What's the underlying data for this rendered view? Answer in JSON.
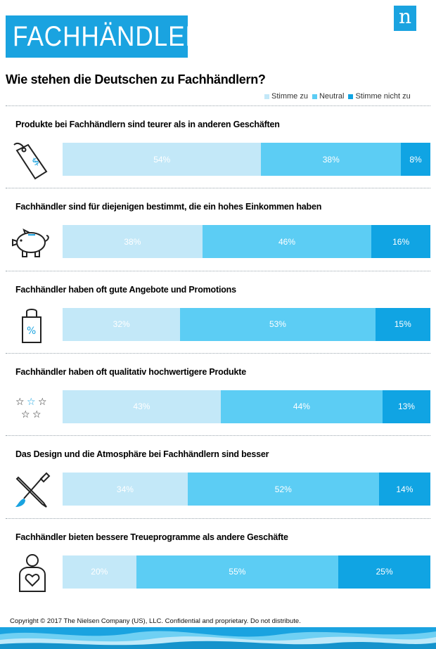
{
  "header": {
    "banner_title": "FACHHÄNDLER",
    "logo_letter": "n"
  },
  "subtitle": "Wie stehen die Deutschen zu Fachhändlern?",
  "colors": {
    "agree": "#c3e8f8",
    "neutral": "#5ccdf4",
    "disagree": "#10a4e3",
    "brand": "#1aa3e0"
  },
  "chart_data": {
    "type": "bar",
    "stacked": true,
    "orientation": "horizontal",
    "title": "Wie stehen die Deutschen zu Fachhändlern?",
    "legend_position": "top-right",
    "series_names": [
      "Stimme zu",
      "Neutral",
      "Stimme nicht zu"
    ],
    "categories": [
      "Produkte bei Fachhändlern sind teurer als in anderen Geschäften",
      "Fachhändler sind für diejenigen bestimmt, die ein hohes Einkommen haben",
      "Fachhändler haben oft gute Angebote und Promotions",
      "Fachhändler haben oft qualitativ hochwertigere Produkte",
      "Das Design und die Atmosphäre bei Fachhändlern sind besser",
      "Fachhändler bieten bessere Treueprogramme als andere Geschäfte"
    ],
    "series": [
      {
        "name": "Stimme zu",
        "values": [
          54,
          38,
          32,
          43,
          34,
          20
        ]
      },
      {
        "name": "Neutral",
        "values": [
          38,
          46,
          53,
          44,
          52,
          55
        ]
      },
      {
        "name": "Stimme nicht zu",
        "values": [
          8,
          16,
          15,
          13,
          14,
          25
        ]
      }
    ],
    "value_suffix": "%",
    "icons": [
      "price-tag-icon",
      "piggy-bank-icon",
      "shopping-bag-percent-icon",
      "stars-icon",
      "pencil-brush-icon",
      "person-heart-icon"
    ]
  },
  "footer": {
    "copyright": "Copyright © 2017 The Nielsen Company (US), LLC. Confidential and proprietary. Do not distribute."
  }
}
